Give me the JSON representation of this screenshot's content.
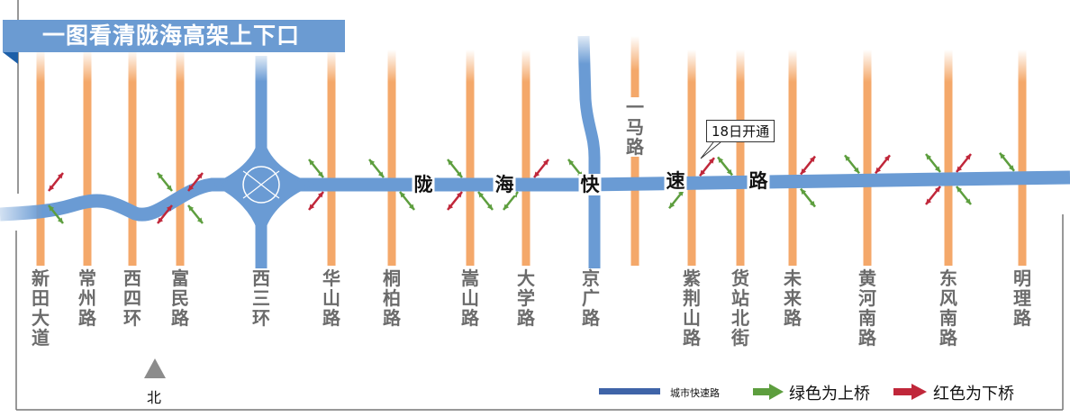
{
  "title": "一图看清陇海高架上下口",
  "expressway": {
    "name_chars": [
      "陇",
      "海",
      "快",
      "速",
      "路"
    ],
    "color": "#6a9bd4"
  },
  "streets": [
    {
      "name": "新田大道",
      "kind": "local"
    },
    {
      "name": "常州路",
      "kind": "local"
    },
    {
      "name": "西四环",
      "kind": "local"
    },
    {
      "name": "富民路",
      "kind": "local"
    },
    {
      "name": "西三环",
      "kind": "expressway"
    },
    {
      "name": "华山路",
      "kind": "local"
    },
    {
      "name": "桐柏路",
      "kind": "local"
    },
    {
      "name": "嵩山路",
      "kind": "local"
    },
    {
      "name": "大学路",
      "kind": "local"
    },
    {
      "name": "京广路",
      "kind": "expressway"
    },
    {
      "name": "一马路",
      "kind": "local"
    },
    {
      "name": "紫荆山路",
      "kind": "local"
    },
    {
      "name": "货站北街",
      "kind": "local"
    },
    {
      "name": "未来路",
      "kind": "local"
    },
    {
      "name": "黄河南路",
      "kind": "local"
    },
    {
      "name": "东风南路",
      "kind": "local"
    },
    {
      "name": "明理路",
      "kind": "local"
    }
  ],
  "ramps": [
    {
      "street": "新田大道",
      "quadrant": "ne",
      "type": "off"
    },
    {
      "street": "新田大道",
      "quadrant": "se",
      "type": "on"
    },
    {
      "street": "富民路",
      "quadrant": "nw",
      "type": "on"
    },
    {
      "street": "富民路",
      "quadrant": "ne",
      "type": "off"
    },
    {
      "street": "富民路",
      "quadrant": "sw",
      "type": "off"
    },
    {
      "street": "富民路",
      "quadrant": "se",
      "type": "on"
    },
    {
      "street": "华山路",
      "quadrant": "nw",
      "type": "on"
    },
    {
      "street": "华山路",
      "quadrant": "sw",
      "type": "off"
    },
    {
      "street": "桐柏路",
      "quadrant": "nw",
      "type": "on"
    },
    {
      "street": "桐柏路",
      "quadrant": "se",
      "type": "on"
    },
    {
      "street": "嵩山路",
      "quadrant": "nw",
      "type": "on"
    },
    {
      "street": "嵩山路",
      "quadrant": "sw",
      "type": "off"
    },
    {
      "street": "嵩山路",
      "quadrant": "se",
      "type": "on"
    },
    {
      "street": "大学路",
      "quadrant": "ne",
      "type": "off"
    },
    {
      "street": "大学路",
      "quadrant": "sw",
      "type": "on"
    },
    {
      "street": "京广路",
      "quadrant": "nw",
      "type": "on"
    },
    {
      "street": "紫荆山路",
      "quadrant": "sw",
      "type": "on"
    },
    {
      "street": "紫荆山路",
      "quadrant": "ne",
      "type": "off"
    },
    {
      "street": "货站北街",
      "quadrant": "nw",
      "type": "on"
    },
    {
      "street": "未来路",
      "quadrant": "ne",
      "type": "off"
    },
    {
      "street": "未来路",
      "quadrant": "se",
      "type": "on"
    },
    {
      "street": "黄河南路",
      "quadrant": "nw",
      "type": "on"
    },
    {
      "street": "黄河南路",
      "quadrant": "ne",
      "type": "off"
    },
    {
      "street": "东风南路",
      "quadrant": "nw",
      "type": "on"
    },
    {
      "street": "东风南路",
      "quadrant": "ne",
      "type": "off"
    },
    {
      "street": "东风南路",
      "quadrant": "sw",
      "type": "off"
    },
    {
      "street": "东风南路",
      "quadrant": "se",
      "type": "on"
    },
    {
      "street": "明理路",
      "quadrant": "nw",
      "type": "on"
    }
  ],
  "callout": "18日开通",
  "north_label": "北",
  "legend": {
    "expressway_label": "城市快速路",
    "on_label": "绿色为上桥",
    "off_label": "红色为下桥",
    "expressway_color": "#3f64a8",
    "on_color": "#5d9e3e",
    "off_color": "#c0273a"
  },
  "colors": {
    "local_street": "#f4a86a",
    "title_bg": "#6b9bd2"
  }
}
